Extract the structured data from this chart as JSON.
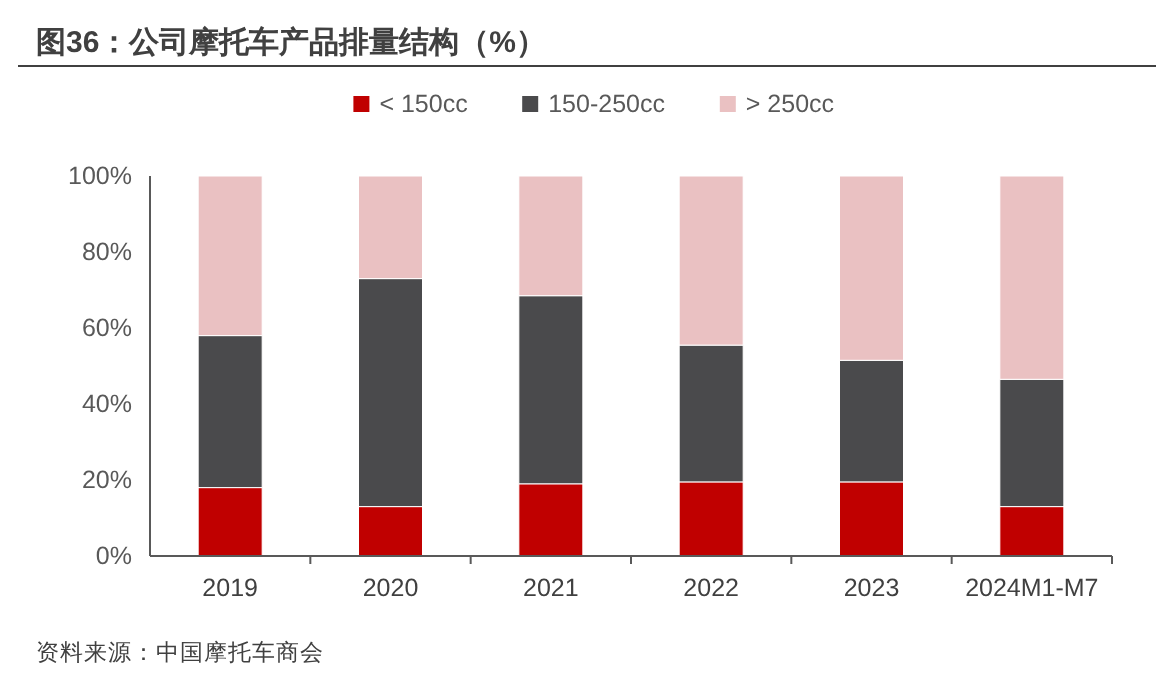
{
  "chart_data": {
    "type": "bar",
    "title": "图36：公司摩托车产品排量结构（%）",
    "categories": [
      "2019",
      "2020",
      "2021",
      "2022",
      "2023",
      "2024M1-M7"
    ],
    "stacked": true,
    "series": [
      {
        "name": "< 150cc",
        "color": "#c00000",
        "values": [
          18,
          13,
          19,
          19.5,
          19.5,
          13
        ]
      },
      {
        "name": "150-250cc",
        "color": "#4a4a4c",
        "values": [
          40,
          60,
          49.5,
          36,
          32,
          33.5
        ]
      },
      {
        "name": "> 250cc",
        "color": "#eac1c2",
        "values": [
          42,
          27,
          31.5,
          44.5,
          48.5,
          53.5
        ]
      }
    ],
    "ylim": [
      0,
      100
    ],
    "yticks": [
      {
        "value": 0,
        "label": "0%"
      },
      {
        "value": 20,
        "label": "20%"
      },
      {
        "value": 40,
        "label": "40%"
      },
      {
        "value": 60,
        "label": "60%"
      },
      {
        "value": 80,
        "label": "80%"
      },
      {
        "value": 100,
        "label": "100%"
      }
    ],
    "legend": "top",
    "annotations": [
      "资料来源：中国摩托车商会"
    ]
  }
}
